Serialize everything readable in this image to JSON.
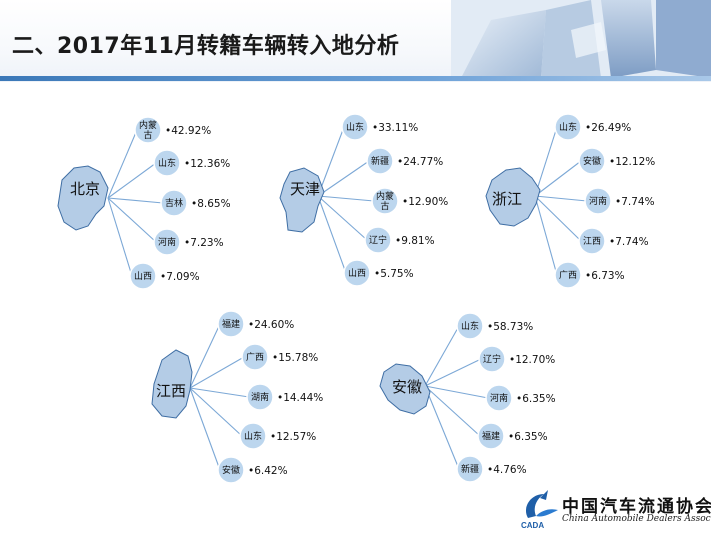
{
  "title": "二、2017年11月转籍车辆转入地分析",
  "colors": {
    "circle": "#bcd6ee",
    "connector": "#7ca8d6",
    "map": "#b4cce6",
    "rule": "#3b78b8"
  },
  "groups": [
    {
      "origin": "北京",
      "destinations": [
        {
          "label": "内蒙古",
          "percent": "•42.92%"
        },
        {
          "label": "山东",
          "percent": "•12.36%"
        },
        {
          "label": "吉林",
          "percent": "•8.65%"
        },
        {
          "label": "河南",
          "percent": "•7.23%"
        },
        {
          "label": "山西",
          "percent": "•7.09%"
        }
      ]
    },
    {
      "origin": "天津",
      "destinations": [
        {
          "label": "山东",
          "percent": "•33.11%"
        },
        {
          "label": "新疆",
          "percent": "•24.77%"
        },
        {
          "label": "内蒙古",
          "percent": "•12.90%"
        },
        {
          "label": "辽宁",
          "percent": "•9.81%"
        },
        {
          "label": "山西",
          "percent": "•5.75%"
        }
      ]
    },
    {
      "origin": "浙江",
      "destinations": [
        {
          "label": "山东",
          "percent": "•26.49%"
        },
        {
          "label": "安徽",
          "percent": "•12.12%"
        },
        {
          "label": "河南",
          "percent": "•7.74%"
        },
        {
          "label": "江西",
          "percent": "•7.74%"
        },
        {
          "label": "广西",
          "percent": "•6.73%"
        }
      ]
    },
    {
      "origin": "江西",
      "destinations": [
        {
          "label": "福建",
          "percent": "•24.60%"
        },
        {
          "label": "广西",
          "percent": "•15.78%"
        },
        {
          "label": "湖南",
          "percent": "•14.44%"
        },
        {
          "label": "山东",
          "percent": "•12.57%"
        },
        {
          "label": "安徽",
          "percent": "•6.42%"
        }
      ]
    },
    {
      "origin": "安徽",
      "destinations": [
        {
          "label": "山东",
          "percent": "•58.73%"
        },
        {
          "label": "辽宁",
          "percent": "•12.70%"
        },
        {
          "label": "河南",
          "percent": "•6.35%"
        },
        {
          "label": "福建",
          "percent": "•6.35%"
        },
        {
          "label": "新疆",
          "percent": "•4.76%"
        }
      ]
    }
  ],
  "footer": {
    "org_name_cn": "中国汽车流通协会",
    "org_name_en": "China Automobile Dealers Association",
    "logo_abbr": "CADA"
  }
}
